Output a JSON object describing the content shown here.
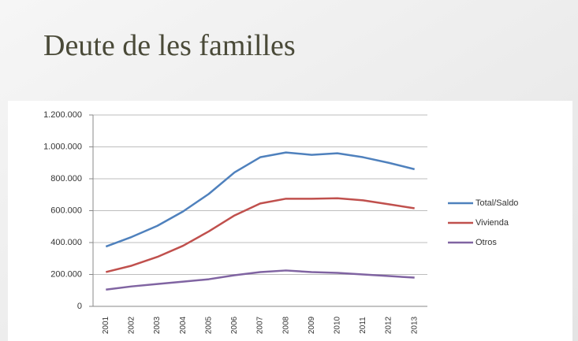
{
  "title": "Deute de les familles",
  "chart_data": {
    "type": "line",
    "categories": [
      "2001",
      "2002",
      "2003",
      "2004",
      "2005",
      "2006",
      "2007",
      "2008",
      "2009",
      "2010",
      "2011",
      "2012",
      "2013"
    ],
    "series": [
      {
        "name": "Total/Saldo",
        "color": "#4f81bd",
        "values": [
          375000,
          435000,
          505000,
          595000,
          705000,
          840000,
          935000,
          965000,
          950000,
          960000,
          935000,
          900000,
          860000
        ]
      },
      {
        "name": "Vivienda",
        "color": "#c0504d",
        "values": [
          215000,
          255000,
          310000,
          380000,
          470000,
          570000,
          645000,
          675000,
          675000,
          678000,
          665000,
          640000,
          615000
        ]
      },
      {
        "name": "Otros",
        "color": "#8064a2",
        "values": [
          105000,
          125000,
          140000,
          155000,
          170000,
          195000,
          215000,
          225000,
          215000,
          210000,
          200000,
          190000,
          180000
        ]
      }
    ],
    "ylim": [
      0,
      1200000
    ],
    "yticks": [
      0,
      {
        "value": 200000,
        "label": "200.000"
      },
      {
        "value": 400000,
        "label": "400.000"
      },
      {
        "value": 600000,
        "label": "600.000"
      },
      {
        "value": 800000,
        "label": "800.000"
      },
      {
        "value": 1000000,
        "label": "1.000.000"
      },
      {
        "value": 1200000,
        "label": "1.200.000"
      }
    ],
    "grid": true,
    "legend": "right"
  }
}
